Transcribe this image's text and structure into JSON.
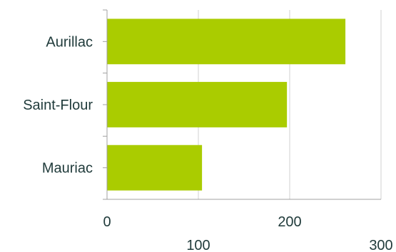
{
  "chart_data": {
    "type": "bar",
    "orientation": "horizontal",
    "categories": [
      "Aurillac",
      "Saint-Flour",
      "Mauriac"
    ],
    "values": [
      261,
      197,
      104
    ],
    "xlim": [
      0,
      300
    ],
    "x_ticks": [
      0,
      100,
      200,
      300
    ],
    "grid": true,
    "bar_color": "#aacc00",
    "title": "",
    "xlabel": "",
    "ylabel": ""
  }
}
